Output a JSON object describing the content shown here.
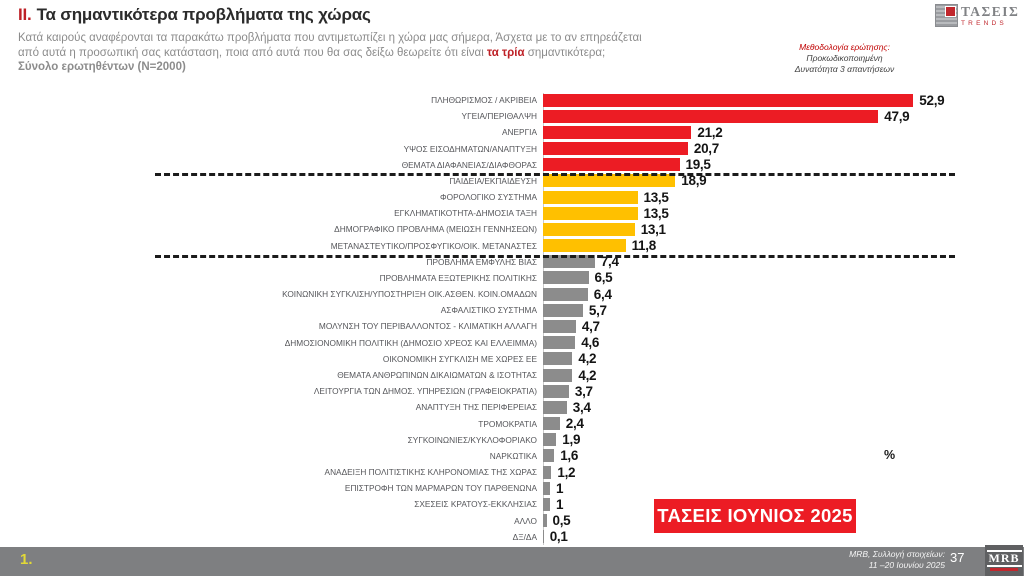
{
  "header": {
    "section_number": "II.",
    "title": "Τα σημαντικότερα προβλήματα της χώρας",
    "subtitle_line1": "Κατά καιρούς αναφέρονται τα παρακάτω προβλήματα που αντιμετωπίζει η χώρα μας σήμερα, Άσχετα με το αν επηρεάζεται",
    "subtitle_line2_pre": "από αυτά η προσωπική σας κατάσταση, ποια από αυτά που θα σας δείξω θεωρείτε ότι είναι ",
    "subtitle_highlight": "τα τρία",
    "subtitle_line2_post": " σημαντικότερα;",
    "sample": "Σύνολο ερωτηθέντων (N=2000)",
    "methodology": {
      "label": "Μεθοδολογία ερώτησης:",
      "line1": "Προκωδικοποιημένη",
      "line2": "Δυνατότητα 3 απαντήσεων"
    },
    "logo": {
      "name": "ΤΑΣΕΙΣ",
      "sub": "TRENDS"
    }
  },
  "chart_data": {
    "type": "bar",
    "orientation": "horizontal",
    "title": "Τα σημαντικότερα προβλήματα της χώρας",
    "xlabel": "%",
    "ylabel": "",
    "xlim": [
      0,
      55
    ],
    "grid": false,
    "legend": false,
    "unit": "%",
    "categories": [
      "ΠΛΗΘΩΡΙΣΜΟΣ / ΑΚΡΙΒΕΙΑ",
      "ΥΓΕΙΑ/ΠΕΡΙΘΑΛΨΗ",
      "ΑΝΕΡΓΙΑ",
      "ΥΨΟΣ ΕΙΣΟΔΗΜΑΤΩΝ/ΑΝΑΠΤΥΞΗ",
      "ΘΕΜΑΤΑ ΔΙΑΦΑΝΕΙΑΣ/ΔΙΑΦΘΟΡΑΣ",
      "ΠΑΙΔΕΙΑ/ΕΚΠΑΙΔΕΥΣΗ",
      "ΦΟΡΟΛΟΓΙΚΟ ΣΥΣΤΗΜΑ",
      "ΕΓΚΛΗΜΑΤΙΚΟΤΗΤΑ-ΔΗΜΟΣΙΑ ΤΑΞΗ",
      "ΔΗΜΟΓΡΑΦΙΚΟ ΠΡΟΒΛΗΜΑ (ΜΕΙΩΣΗ ΓΕΝΝΗΣΕΩΝ)",
      "ΜΕΤΑΝΑΣΤΕΥΤΙΚΟ/ΠΡΟΣΦΥΓΙΚΟ/ΟΙΚ. ΜΕΤΑΝΑΣΤΕΣ",
      "ΠΡΟΒΛΗΜΑ ΕΜΦΥΛΗΣ ΒΙΑΣ",
      "ΠΡΟΒΛΗΜΑΤΑ ΕΞΩΤΕΡΙΚΗΣ ΠΟΛΙΤΙΚΗΣ",
      "ΚΟΙΝΩΝΙΚΗ ΣΥΓΚΛΙΣΗ/ΥΠΟΣΤΗΡΙΞΗ ΟΙΚ.ΑΣΘΕΝ. ΚΟΙΝ.ΟΜΑΔΩΝ",
      "ΑΣΦΑΛΙΣΤΙΚΟ ΣΥΣΤΗΜΑ",
      "ΜΟΛΥΝΣΗ ΤΟΥ ΠΕΡΙΒΑΛΛΟΝΤΟΣ - ΚΛΙΜΑΤΙΚΗ ΑΛΛΑΓΗ",
      "ΔΗΜΟΣΙΟΝΟΜΙΚΗ ΠΟΛΙΤΙΚΗ (ΔΗΜΟΣΙΟ ΧΡΕΟΣ ΚΑΙ ΕΛΛΕΙΜΜΑ)",
      "ΟΙΚΟΝΟΜΙΚΗ ΣΥΓΚΛΙΣΗ ΜΕ  ΧΩΡΕΣ  ΕΕ",
      "ΘΕΜΑΤΑ ΑΝΘΡΩΠΙΝΩΝ ΔΙΚΑΙΩΜΑΤΩΝ & ΙΣΟΤΗΤΑΣ",
      "ΛΕΙΤΟΥΡΓΙΑ ΤΩΝ ΔΗΜΟΣ. ΥΠΗΡΕΣΙΩΝ (ΓΡΑΦΕΙΟΚΡΑΤΙΑ)",
      "ΑΝΑΠΤΥΞΗ ΤΗΣ ΠΕΡΙΦΕΡΕΙΑΣ",
      "ΤΡΟΜΟΚΡΑΤΙΑ",
      "ΣΥΓΚΟΙΝΩΝΙΕΣ/ΚΥΚΛΟΦΟΡΙΑΚΟ",
      "ΝΑΡΚΩΤΙΚΑ",
      "ΑΝΑΔΕΙΞΗ ΠΟΛΙΤΙΣΤΙΚΗΣ ΚΛΗΡΟΝΟΜΙΑΣ ΤΗΣ ΧΩΡΑΣ",
      "ΕΠΙΣΤΡΟΦΗ ΤΩΝ ΜΑΡΜΑΡΩΝ ΤΟΥ ΠΑΡΘΕΝΩΝΑ",
      "ΣΧΕΣΕΙΣ ΚΡΑΤΟΥΣ-ΕΚΚΛΗΣΙΑΣ",
      "ΑΛΛΟ",
      "ΔΞ/ΔΑ"
    ],
    "values": [
      52.9,
      47.9,
      21.2,
      20.7,
      19.5,
      18.9,
      13.5,
      13.5,
      13.1,
      11.8,
      7.4,
      6.5,
      6.4,
      5.7,
      4.7,
      4.6,
      4.2,
      4.2,
      3.7,
      3.4,
      2.4,
      1.9,
      1.6,
      1.2,
      1,
      1,
      0.5,
      0.1
    ],
    "display_values": [
      "52,9",
      "47,9",
      "21,2",
      "20,7",
      "19,5",
      "18,9",
      "13,5",
      "13,5",
      "13,1",
      "11,8",
      "7,4",
      "6,5",
      "6,4",
      "5,7",
      "4,7",
      "4,6",
      "4,2",
      "4,2",
      "3,7",
      "3,4",
      "2,4",
      "1,9",
      "1,6",
      "1,2",
      "1",
      "1",
      "0,5",
      "0,1"
    ],
    "groups": [
      "red",
      "red",
      "red",
      "red",
      "red",
      "gold",
      "gold",
      "gold",
      "gold",
      "gold",
      "gray",
      "gray",
      "gray",
      "gray",
      "gray",
      "gray",
      "gray",
      "gray",
      "gray",
      "gray",
      "gray",
      "gray",
      "gray",
      "gray",
      "gray",
      "gray",
      "gray",
      "gray"
    ],
    "colors": {
      "red": "#ec1c24",
      "gold": "#ffc000",
      "gray": "#8c8c8c"
    },
    "separators_after_rank": [
      5,
      10
    ]
  },
  "annotations": {
    "percent_label": "%",
    "badge": "ΤΑΣΕΙΣ ΙΟΥΝΙΟΣ 2025"
  },
  "footer": {
    "slide_number_left": "1.",
    "source_line1": "MRB, Συλλογή στοιχείων:",
    "source_line2": "11 –20 Ιουνίου 2025",
    "page_number": "37",
    "logo_text": "MRB"
  }
}
